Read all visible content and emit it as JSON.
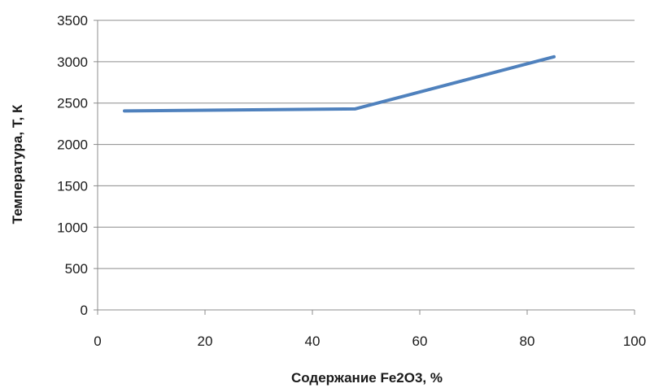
{
  "chart_data": {
    "type": "line",
    "title": "",
    "xlabel": "Содержание Fe2O3, %",
    "ylabel": "Температура, Т, К",
    "xlim": [
      0,
      100
    ],
    "ylim": [
      0,
      3500
    ],
    "x_ticks": [
      0,
      20,
      40,
      60,
      80,
      100
    ],
    "y_ticks": [
      0,
      500,
      1000,
      1500,
      2000,
      2500,
      3000,
      3500
    ],
    "x_tick_labels": [
      "0",
      "20",
      "40",
      "60",
      "80",
      "100"
    ],
    "y_tick_labels": [
      "0",
      "500",
      "1000",
      "1500",
      "2000",
      "2500",
      "3000",
      "3500"
    ],
    "grid": "horizontal",
    "legend": "none",
    "series": [
      {
        "color": "#4f81bd",
        "x": [
          5,
          48,
          85
        ],
        "y": [
          2405,
          2430,
          3060
        ]
      }
    ]
  }
}
